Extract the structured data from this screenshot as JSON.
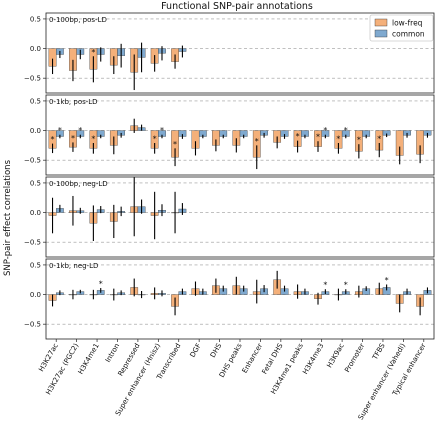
{
  "chart_data": {
    "type": "bar",
    "title": "Functional SNP-pair annotations",
    "ylabel": "SNP-pair effect correlations",
    "ylim": [
      -0.75,
      0.6
    ],
    "yticks": [
      -0.5,
      0.0,
      0.5
    ],
    "ytick_labels": [
      "−0.5",
      "0.0",
      "0.5"
    ],
    "grid": "horizontal dashed",
    "legend_position": "top-right",
    "colors": {
      "low-freq": "#F4B07A",
      "common": "#7FA9CF",
      "error": "#000000"
    },
    "legend": [
      "low-freq",
      "common"
    ],
    "categories": [
      "H3K27ac",
      "H3K27ac (PGC2)",
      "H3K4me1",
      "Intron",
      "Repressed",
      "Super enhancer (Hnisz)",
      "Transcribed",
      "DGF",
      "DHS",
      "DHS peaks",
      "Enhancer",
      "Fetal DHS",
      "H3K4me1 peaks",
      "H3K4me3",
      "H3K9ac",
      "Promoter",
      "TFBS",
      "Super enhancer (Vahedi)",
      "Typical enhancer"
    ],
    "panels": [
      {
        "label": "0-100bp, pos-LD",
        "low_freq": [
          -0.3,
          -0.37,
          -0.35,
          -0.28,
          -0.4,
          -0.25,
          -0.22
        ],
        "low_freq_err": [
          0.13,
          0.18,
          0.22,
          0.15,
          0.3,
          0.14,
          0.12
        ],
        "common": [
          -0.1,
          -0.1,
          -0.1,
          -0.12,
          -0.15,
          -0.08,
          -0.05
        ],
        "common_err": [
          0.06,
          0.08,
          0.12,
          0.2,
          0.25,
          0.12,
          0.1
        ],
        "stars": [
          [],
          [],
          [
            "low-freq"
          ],
          [],
          [],
          [],
          []
        ]
      },
      {
        "label": "0-1kb, pos-LD",
        "low_freq": [
          -0.3,
          -0.28,
          -0.3,
          -0.25,
          0.08,
          -0.3,
          -0.45,
          -0.3,
          -0.25,
          -0.25,
          -0.45,
          -0.2,
          -0.27,
          -0.27,
          -0.3,
          -0.35,
          -0.33,
          -0.42,
          -0.4
        ],
        "low_freq_err": [
          0.08,
          0.08,
          0.09,
          0.15,
          0.12,
          0.09,
          0.15,
          0.12,
          0.1,
          0.12,
          0.2,
          0.1,
          0.1,
          0.09,
          0.09,
          0.12,
          0.12,
          0.15,
          0.15
        ],
        "common": [
          -0.1,
          -0.1,
          -0.1,
          -0.08,
          0.05,
          -0.1,
          -0.1,
          -0.1,
          -0.1,
          -0.1,
          -0.08,
          -0.1,
          -0.1,
          -0.1,
          -0.1,
          -0.1,
          -0.08,
          -0.08,
          -0.08
        ],
        "common_err": [
          0.03,
          0.03,
          0.03,
          0.04,
          0.05,
          0.03,
          0.04,
          0.03,
          0.03,
          0.03,
          0.04,
          0.04,
          0.03,
          0.03,
          0.03,
          0.03,
          0.03,
          0.04,
          0.04
        ],
        "stars": [
          [
            "low-freq",
            "common"
          ],
          [
            "low-freq",
            "common"
          ],
          [
            "low-freq"
          ],
          [],
          [],
          [
            "low-freq",
            "common"
          ],
          [
            "low-freq"
          ],
          [],
          [],
          [],
          [
            "low-freq"
          ],
          [],
          [
            "low-freq"
          ],
          [
            "low-freq",
            "common"
          ],
          [
            "low-freq",
            "common"
          ],
          [
            "low-freq"
          ],
          [
            "low-freq"
          ],
          [],
          []
        ]
      },
      {
        "label": "0-100bp, neg-LD",
        "low_freq": [
          -0.05,
          0.03,
          -0.18,
          -0.15,
          0.1,
          -0.05,
          0.0
        ],
        "low_freq_err": [
          0.3,
          0.25,
          0.3,
          0.28,
          0.5,
          0.4,
          0.35
        ],
        "common": [
          0.07,
          0.03,
          0.05,
          0.02,
          0.1,
          0.04,
          0.06
        ],
        "common_err": [
          0.06,
          0.05,
          0.06,
          0.08,
          0.12,
          0.1,
          0.1
        ],
        "stars": [
          [],
          [],
          [],
          [],
          [],
          [],
          []
        ]
      },
      {
        "label": "0-1kb, neg-LD",
        "low_freq": [
          -0.1,
          0.0,
          0.0,
          0.0,
          0.12,
          0.02,
          -0.2,
          0.1,
          0.15,
          0.15,
          0.05,
          0.25,
          0.05,
          -0.07,
          0.0,
          0.05,
          0.1,
          -0.15,
          -0.2
        ],
        "low_freq_err": [
          0.1,
          0.08,
          0.08,
          0.1,
          0.15,
          0.1,
          0.15,
          0.12,
          0.12,
          0.15,
          0.2,
          0.15,
          0.12,
          0.1,
          0.1,
          0.1,
          0.1,
          0.15,
          0.15
        ],
        "common": [
          0.03,
          0.05,
          0.07,
          0.03,
          0.0,
          0.02,
          0.05,
          0.05,
          0.1,
          0.1,
          0.1,
          0.1,
          0.05,
          0.05,
          0.05,
          0.1,
          0.12,
          0.05,
          0.07
        ],
        "common_err": [
          0.04,
          0.03,
          0.04,
          0.04,
          0.06,
          0.05,
          0.05,
          0.05,
          0.05,
          0.05,
          0.06,
          0.05,
          0.05,
          0.04,
          0.04,
          0.04,
          0.05,
          0.05,
          0.05
        ],
        "stars": [
          [],
          [],
          [
            "common"
          ],
          [],
          [],
          [],
          [],
          [],
          [],
          [],
          [],
          [],
          [],
          [
            "common"
          ],
          [
            "common"
          ],
          [],
          [
            "common"
          ],
          [],
          []
        ]
      }
    ]
  }
}
